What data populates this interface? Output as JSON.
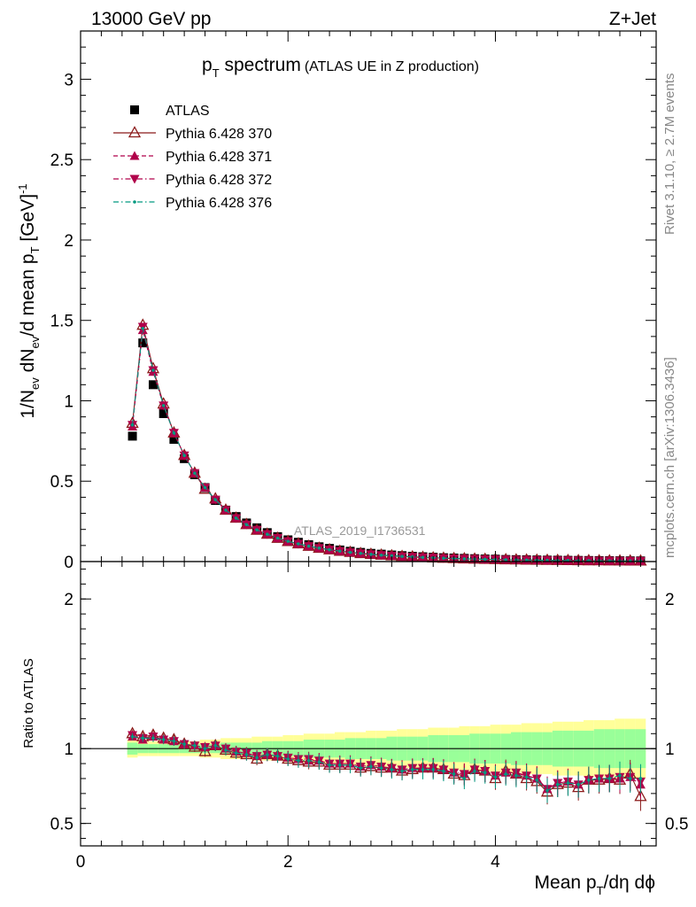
{
  "header": {
    "left": "13000 GeV pp",
    "right": "Z+Jet"
  },
  "side_labels": {
    "rivet": "Rivet 3.1.10, ≥ 2.7M events",
    "mcplots": "mcplots.cern.ch [arXiv:1306.3436]"
  },
  "chart_data": [
    {
      "type": "scatter",
      "panel": "main",
      "title_main": "p",
      "title_sub": "T",
      "title_rest": " spectrum",
      "title_note": "(ATLAS UE in Z production)",
      "watermark": "ATLAS_2019_I1736531",
      "ylabel_parts": [
        "1/N",
        "ev",
        " dN",
        "ev",
        "/d mean p",
        "T",
        " [GeV]",
        "-1"
      ],
      "ylim": [
        0,
        3.3
      ],
      "xlim": [
        0,
        5.55
      ],
      "y_ticks": [
        "0",
        "0.5",
        "1",
        "1.5",
        "2",
        "2.5",
        "3"
      ],
      "y_tick_values": [
        0,
        0.5,
        1,
        1.5,
        2,
        2.5,
        3
      ],
      "x": [
        0.5,
        0.6,
        0.7,
        0.8,
        0.9,
        1.0,
        1.1,
        1.2,
        1.3,
        1.4,
        1.5,
        1.6,
        1.7,
        1.8,
        1.9,
        2.0,
        2.1,
        2.2,
        2.3,
        2.4,
        2.5,
        2.6,
        2.7,
        2.8,
        2.9,
        3.0,
        3.1,
        3.2,
        3.3,
        3.4,
        3.5,
        3.6,
        3.7,
        3.8,
        3.9,
        4.0,
        4.1,
        4.2,
        4.3,
        4.4,
        4.5,
        4.6,
        4.7,
        4.8,
        4.9,
        5.0,
        5.1,
        5.2,
        5.3,
        5.4
      ],
      "series": [
        {
          "name": "ATLAS",
          "marker": "square",
          "color": "#000000",
          "line": "none",
          "values": [
            0.78,
            1.36,
            1.1,
            0.92,
            0.76,
            0.64,
            0.54,
            0.46,
            0.38,
            0.32,
            0.28,
            0.24,
            0.21,
            0.18,
            0.155,
            0.135,
            0.12,
            0.105,
            0.092,
            0.082,
            0.072,
            0.064,
            0.057,
            0.051,
            0.046,
            0.041,
            0.037,
            0.033,
            0.03,
            0.027,
            0.024,
            0.022,
            0.02,
            0.018,
            0.016,
            0.015,
            0.013,
            0.012,
            0.011,
            0.01,
            0.009,
            0.0085,
            0.0078,
            0.0072,
            0.0066,
            0.006,
            0.0055,
            0.005,
            0.0046,
            0.0042
          ]
        },
        {
          "name": "Pythia 6.428 370",
          "marker": "triangle-open",
          "color": "#8b1a1a",
          "line": "solid",
          "values": [
            0.86,
            1.47,
            1.2,
            0.98,
            0.8,
            0.66,
            0.55,
            0.45,
            0.39,
            0.32,
            0.27,
            0.23,
            0.195,
            0.17,
            0.145,
            0.125,
            0.11,
            0.095,
            0.083,
            0.073,
            0.064,
            0.057,
            0.05,
            0.045,
            0.04,
            0.036,
            0.032,
            0.029,
            0.026,
            0.023,
            0.021,
            0.019,
            0.017,
            0.0155,
            0.014,
            0.0128,
            0.0115,
            0.0103,
            0.0094,
            0.0085,
            0.0077,
            0.007,
            0.0064,
            0.0058,
            0.0053,
            0.0048,
            0.0044,
            0.004,
            0.0037,
            0.0033
          ]
        },
        {
          "name": "Pythia 6.428 371",
          "marker": "triangle-up",
          "color": "#b0004a",
          "line": "dashed",
          "values": [
            0.84,
            1.44,
            1.18,
            0.97,
            0.8,
            0.66,
            0.55,
            0.46,
            0.385,
            0.32,
            0.27,
            0.23,
            0.197,
            0.17,
            0.146,
            0.126,
            0.11,
            0.096,
            0.084,
            0.074,
            0.065,
            0.057,
            0.051,
            0.045,
            0.04,
            0.036,
            0.032,
            0.029,
            0.026,
            0.024,
            0.021,
            0.019,
            0.017,
            0.0155,
            0.014,
            0.0128,
            0.0116,
            0.0105,
            0.0095,
            0.0086,
            0.0078,
            0.0071,
            0.0065,
            0.0059,
            0.0054,
            0.0049,
            0.0045,
            0.0041,
            0.0037,
            0.0034
          ]
        },
        {
          "name": "Pythia 6.428 372",
          "marker": "triangle-down",
          "color": "#b0004a",
          "line": "dashdot",
          "values": [
            0.85,
            1.46,
            1.19,
            0.97,
            0.8,
            0.66,
            0.55,
            0.46,
            0.385,
            0.32,
            0.27,
            0.23,
            0.197,
            0.17,
            0.146,
            0.126,
            0.11,
            0.096,
            0.084,
            0.074,
            0.065,
            0.057,
            0.051,
            0.045,
            0.04,
            0.036,
            0.032,
            0.029,
            0.026,
            0.024,
            0.021,
            0.019,
            0.017,
            0.0155,
            0.014,
            0.0128,
            0.0116,
            0.0105,
            0.0095,
            0.0086,
            0.0078,
            0.0071,
            0.0065,
            0.0059,
            0.0054,
            0.0049,
            0.0045,
            0.0041,
            0.0037,
            0.0034
          ]
        },
        {
          "name": "Pythia 6.428 376",
          "marker": "dot",
          "color": "#009980",
          "line": "dashdot",
          "values": [
            0.85,
            1.45,
            1.19,
            0.97,
            0.8,
            0.66,
            0.55,
            0.46,
            0.385,
            0.32,
            0.27,
            0.23,
            0.197,
            0.17,
            0.146,
            0.126,
            0.11,
            0.096,
            0.084,
            0.074,
            0.065,
            0.057,
            0.051,
            0.045,
            0.04,
            0.036,
            0.032,
            0.029,
            0.026,
            0.024,
            0.021,
            0.019,
            0.017,
            0.0155,
            0.014,
            0.0128,
            0.0116,
            0.0105,
            0.0095,
            0.0086,
            0.0078,
            0.0071,
            0.0065,
            0.0059,
            0.0054,
            0.0049,
            0.0045,
            0.0041,
            0.0037,
            0.0034
          ]
        }
      ]
    },
    {
      "type": "scatter",
      "panel": "ratio",
      "ylabel": "Ratio to ATLAS",
      "xlabel_parts": [
        "Mean p",
        "T",
        "/dη dϕ"
      ],
      "ylim": [
        0.35,
        2.25
      ],
      "xlim": [
        0,
        5.55
      ],
      "y_ticks": [
        "0.5",
        "1",
        "2"
      ],
      "y_tick_values": [
        0.5,
        1,
        2
      ],
      "x_ticks": [
        "0",
        "2",
        "4"
      ],
      "x_tick_values": [
        0,
        2,
        4
      ],
      "band_inner": [
        0.04,
        0.03,
        0.03,
        0.03,
        0.03,
        0.03,
        0.03,
        0.03,
        0.03,
        0.04,
        0.04,
        0.04,
        0.04,
        0.05,
        0.05,
        0.05,
        0.05,
        0.06,
        0.06,
        0.06,
        0.06,
        0.07,
        0.07,
        0.07,
        0.07,
        0.08,
        0.08,
        0.08,
        0.08,
        0.09,
        0.09,
        0.09,
        0.09,
        0.1,
        0.1,
        0.1,
        0.1,
        0.11,
        0.11,
        0.11,
        0.11,
        0.12,
        0.12,
        0.12,
        0.12,
        0.13,
        0.13,
        0.13,
        0.13,
        0.13
      ],
      "band_outer": [
        0.06,
        0.05,
        0.05,
        0.05,
        0.05,
        0.05,
        0.05,
        0.06,
        0.06,
        0.07,
        0.07,
        0.07,
        0.08,
        0.08,
        0.08,
        0.09,
        0.09,
        0.1,
        0.1,
        0.1,
        0.11,
        0.11,
        0.11,
        0.12,
        0.12,
        0.12,
        0.13,
        0.13,
        0.13,
        0.14,
        0.14,
        0.14,
        0.15,
        0.15,
        0.15,
        0.16,
        0.16,
        0.16,
        0.17,
        0.17,
        0.17,
        0.18,
        0.18,
        0.18,
        0.19,
        0.19,
        0.19,
        0.2,
        0.2,
        0.2
      ],
      "series": [
        {
          "name": "Pythia 6.428 370",
          "values": [
            1.1,
            1.08,
            1.09,
            1.07,
            1.06,
            1.03,
            1.01,
            0.98,
            1.02,
            0.99,
            0.97,
            0.96,
            0.93,
            0.96,
            0.95,
            0.93,
            0.92,
            0.91,
            0.91,
            0.89,
            0.89,
            0.89,
            0.87,
            0.88,
            0.87,
            0.87,
            0.85,
            0.86,
            0.87,
            0.87,
            0.86,
            0.83,
            0.82,
            0.86,
            0.85,
            0.8,
            0.85,
            0.83,
            0.8,
            0.78,
            0.71,
            0.76,
            0.77,
            0.74,
            0.79,
            0.79,
            0.8,
            0.79,
            0.83,
            0.68
          ]
        },
        {
          "name": "Pythia 6.428 371",
          "values": [
            1.08,
            1.06,
            1.08,
            1.06,
            1.05,
            1.03,
            1.02,
            1.01,
            1.02,
            1.0,
            0.98,
            0.97,
            0.95,
            0.96,
            0.95,
            0.94,
            0.93,
            0.92,
            0.92,
            0.9,
            0.9,
            0.9,
            0.88,
            0.89,
            0.88,
            0.87,
            0.86,
            0.87,
            0.87,
            0.87,
            0.86,
            0.84,
            0.83,
            0.86,
            0.85,
            0.82,
            0.84,
            0.83,
            0.82,
            0.8,
            0.73,
            0.77,
            0.78,
            0.76,
            0.79,
            0.8,
            0.8,
            0.8,
            0.81,
            0.76
          ]
        },
        {
          "name": "Pythia 6.428 372",
          "values": [
            1.09,
            1.07,
            1.08,
            1.06,
            1.05,
            1.03,
            1.02,
            1.01,
            1.02,
            1.0,
            0.98,
            0.97,
            0.95,
            0.96,
            0.95,
            0.94,
            0.93,
            0.93,
            0.92,
            0.9,
            0.9,
            0.9,
            0.88,
            0.89,
            0.88,
            0.87,
            0.86,
            0.87,
            0.87,
            0.87,
            0.86,
            0.84,
            0.83,
            0.86,
            0.85,
            0.82,
            0.84,
            0.84,
            0.82,
            0.8,
            0.73,
            0.77,
            0.78,
            0.76,
            0.79,
            0.8,
            0.8,
            0.81,
            0.81,
            0.78
          ]
        },
        {
          "name": "Pythia 6.428 376",
          "values": [
            1.08,
            1.07,
            1.07,
            1.06,
            1.05,
            1.03,
            1.02,
            1.0,
            1.02,
            0.99,
            0.97,
            0.96,
            0.94,
            0.96,
            0.95,
            0.93,
            0.92,
            0.92,
            0.91,
            0.89,
            0.89,
            0.89,
            0.87,
            0.88,
            0.87,
            0.86,
            0.85,
            0.86,
            0.86,
            0.86,
            0.85,
            0.83,
            0.8,
            0.85,
            0.84,
            0.81,
            0.83,
            0.82,
            0.81,
            0.79,
            0.72,
            0.76,
            0.77,
            0.76,
            0.79,
            0.8,
            0.8,
            0.82,
            0.8,
            0.8
          ]
        }
      ]
    }
  ]
}
